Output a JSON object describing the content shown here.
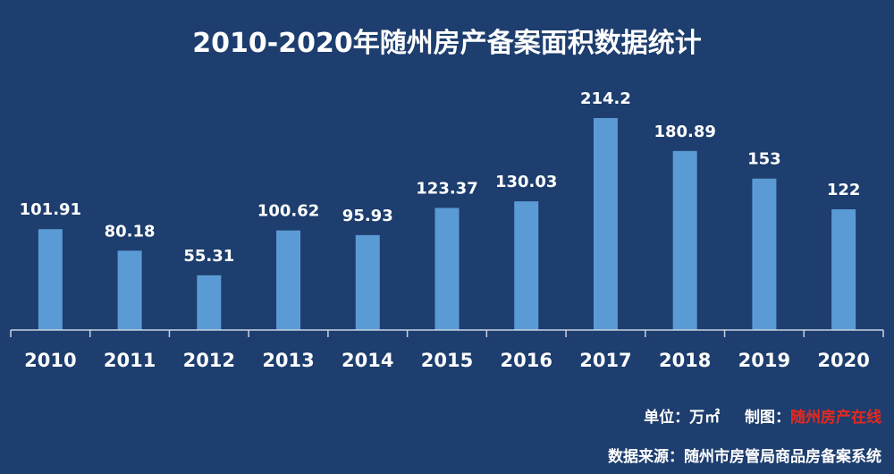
{
  "chart_data": {
    "type": "bar",
    "title": "2010-2020年随州房产备案面积数据统计",
    "categories": [
      "2010",
      "2011",
      "2012",
      "2013",
      "2014",
      "2015",
      "2016",
      "2017",
      "2018",
      "2019",
      "2020"
    ],
    "values": [
      101.91,
      80.18,
      55.31,
      100.62,
      95.93,
      123.37,
      130.03,
      214.2,
      180.89,
      153,
      122
    ],
    "value_labels": [
      "101.91",
      "80.18",
      "55.31",
      "100.62",
      "95.93",
      "123.37",
      "130.03",
      "214.2",
      "180.89",
      "153",
      "122"
    ],
    "ylim": [
      0,
      214.2
    ],
    "grid": false,
    "legend": "none"
  },
  "footer": {
    "unit_label": "单位：万㎡",
    "credit_label": "制图：",
    "credit_source": "随州房产在线",
    "data_source": "数据来源：随州市房管局商品房备案系统"
  },
  "colors": {
    "background": "#1d3e6e",
    "bar": "#5b9bd5",
    "text": "#ffffff",
    "accent": "#e8281e"
  }
}
